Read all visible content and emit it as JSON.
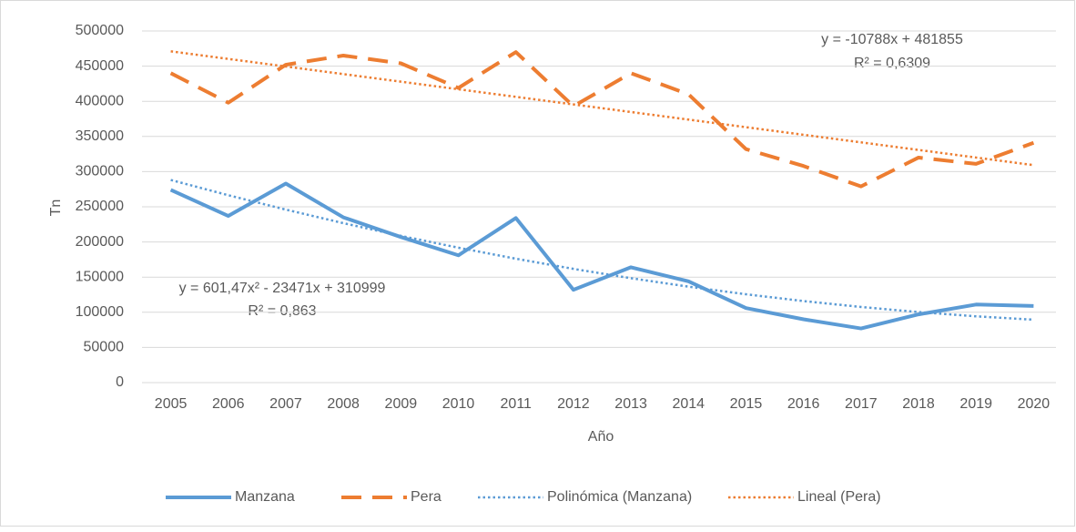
{
  "chart_data": {
    "type": "line",
    "x_label": "Año",
    "y_label": "Tn",
    "categories": [
      "2005",
      "2006",
      "2007",
      "2008",
      "2009",
      "2010",
      "2011",
      "2012",
      "2013",
      "2014",
      "2015",
      "2016",
      "2017",
      "2018",
      "2019",
      "2020"
    ],
    "series": [
      {
        "name": "Manzana",
        "color": "#5b9bd5",
        "style": "solid",
        "values": [
          274000,
          237000,
          283000,
          235000,
          207000,
          181000,
          234000,
          132000,
          164000,
          144000,
          106000,
          90000,
          77000,
          97000,
          111000,
          109000
        ]
      },
      {
        "name": "Pera",
        "color": "#ed7d31",
        "style": "dashed",
        "values": [
          440000,
          398000,
          452000,
          465000,
          454000,
          419000,
          470000,
          393000,
          440000,
          410000,
          332000,
          308000,
          279000,
          320000,
          311000,
          341000
        ]
      },
      {
        "name": "Polinómica (Manzana)",
        "color": "#5b9bd5",
        "style": "dotted",
        "values": [
          288129,
          266463,
          245999,
          226739,
          208681,
          191826,
          176174,
          161725,
          148479,
          136436,
          125596,
          115959,
          107524,
          100293,
          94265,
          89439
        ]
      },
      {
        "name": "Lineal (Pera)",
        "color": "#ed7d31",
        "style": "dotted",
        "values": [
          471067,
          460279,
          449491,
          438703,
          427915,
          417127,
          406339,
          395551,
          384763,
          373975,
          363187,
          352399,
          341611,
          330823,
          320035,
          309247
        ]
      }
    ],
    "annotations": [
      "y = -10788x + 481855",
      "R² = 0,6309",
      "y = 601,47x² - 23471x + 310999",
      "R² = 0,863"
    ],
    "ylim": [
      0,
      500000
    ],
    "yticks": [
      0,
      50000,
      100000,
      150000,
      200000,
      250000,
      300000,
      350000,
      400000,
      450000,
      500000
    ],
    "grid": true,
    "legend": "bottom"
  }
}
